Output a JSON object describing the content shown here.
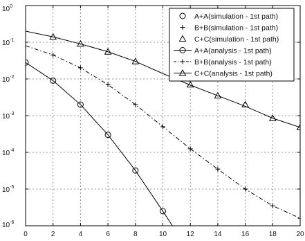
{
  "chart_data": {
    "type": "line",
    "title": "",
    "xlabel": "",
    "ylabel": "",
    "xlim": [
      0,
      20
    ],
    "ylim": [
      1e-06,
      1
    ],
    "y_scale": "log",
    "grid": true,
    "legend_position": "top-right",
    "x_ticks": [
      "0",
      "2",
      "4",
      "6",
      "8",
      "10",
      "12",
      "14",
      "16",
      "18",
      "20"
    ],
    "y_ticks": [
      {
        "base": "10",
        "exp": "0",
        "value": 1
      },
      {
        "base": "10",
        "exp": "-1",
        "value": 0.1
      },
      {
        "base": "10",
        "exp": "-2",
        "value": 0.01
      },
      {
        "base": "10",
        "exp": "-3",
        "value": 0.001
      },
      {
        "base": "10",
        "exp": "-4",
        "value": 0.0001
      },
      {
        "base": "10",
        "exp": "-5",
        "value": 1e-05
      },
      {
        "base": "10",
        "exp": "-6",
        "value": 1e-06
      }
    ],
    "series": [
      {
        "name": "A+A(simulation - 1st path)",
        "marker": "circle",
        "line": "none",
        "x": [
          0,
          2,
          4,
          6,
          8,
          10
        ],
        "y": [
          0.028,
          0.009,
          0.002,
          0.0003,
          3.2e-05,
          2.5e-06
        ]
      },
      {
        "name": "B+B(simulation - 1st path)",
        "marker": "plus",
        "line": "none",
        "x": [
          2,
          4,
          6,
          8,
          10,
          12,
          14,
          16,
          18,
          20
        ],
        "y": [
          0.045,
          0.02,
          0.007,
          0.002,
          0.0005,
          0.000125,
          3.5e-05,
          1e-05,
          3.5e-06,
          1.6e-06
        ]
      },
      {
        "name": "C+C(simulation - 1st path)",
        "marker": "triangle",
        "line": "none",
        "x": [
          2,
          4,
          6,
          8,
          12,
          14,
          16,
          18,
          20
        ],
        "y": [
          0.14,
          0.09,
          0.055,
          0.03,
          0.007,
          0.0035,
          0.002,
          0.00085,
          0.00048
        ]
      },
      {
        "name": "A+A(analysis - 1st path)",
        "marker": "circle",
        "line": "solid",
        "x": [
          0,
          2,
          4,
          6,
          8,
          10,
          12
        ],
        "y": [
          0.028,
          0.009,
          0.002,
          0.0003,
          3.2e-05,
          2.5e-06,
          1.8e-07
        ]
      },
      {
        "name": "B+B(analysis - 1st path)",
        "marker": "plus",
        "line": "dashdot",
        "x": [
          0,
          2,
          4,
          6,
          8,
          10,
          12,
          14,
          16,
          18,
          20
        ],
        "y": [
          0.08,
          0.045,
          0.02,
          0.007,
          0.002,
          0.0005,
          0.000125,
          3.5e-05,
          1e-05,
          3.5e-06,
          1.6e-06
        ]
      },
      {
        "name": "C+C(analysis - 1st path)",
        "marker": "triangle",
        "line": "solid",
        "x": [
          0,
          2,
          4,
          6,
          8,
          10,
          12,
          14,
          16,
          18,
          20
        ],
        "y": [
          0.2,
          0.14,
          0.09,
          0.055,
          0.03,
          0.014,
          0.0068,
          0.0035,
          0.0018,
          0.00085,
          0.00048
        ]
      }
    ]
  }
}
